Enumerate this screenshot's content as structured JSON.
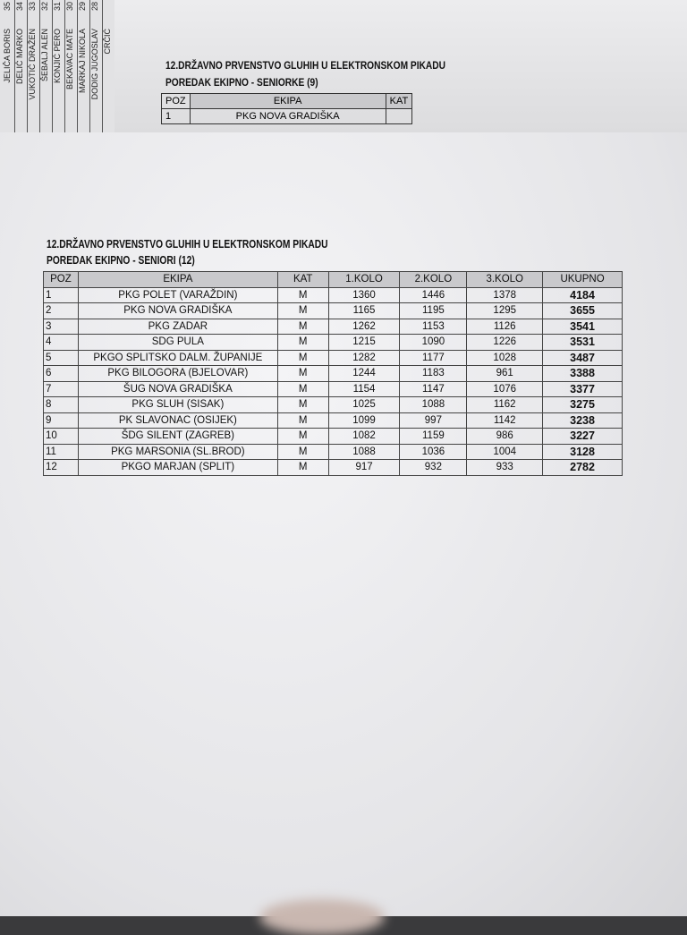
{
  "background_list": {
    "numbers": [
      "28",
      "29",
      "30",
      "31",
      "32",
      "33",
      "34",
      "35"
    ],
    "names": [
      "CRČIĆ",
      "DODIG JUGOSLAV",
      "MARKAJ NIKOLA",
      "BEKAVAC MATE",
      "KONJIĆ PERO",
      "ŠEBALJ ALEN",
      "VUKOTIĆ DRAŽEN",
      "DELIĆ MARKO",
      "JELIČA BORIS"
    ]
  },
  "background_sheet": {
    "title": "12.DRŽAVNO PRVENSTVO GLUHIH U ELEKTRONSKOM PIKADU",
    "subtitle": "POREDAK EKIPNO - SENIORKE (9)",
    "headers": [
      "POZ",
      "EKIPA",
      "KAT"
    ],
    "rows": [
      [
        "1",
        "PKG NOVA GRADIŠKA"
      ]
    ]
  },
  "main_sheet": {
    "title": "12.DRŽAVNO PRVENSTVO GLUHIH U ELEKTRONSKOM PIKADU",
    "subtitle": "POREDAK EKIPNO - SENIORI (12)",
    "headers": [
      "POZ",
      "EKIPA",
      "KAT",
      "1.KOLO",
      "2.KOLO",
      "3.KOLO",
      "UKUPNO"
    ],
    "rows": [
      [
        "1",
        "PKG POLET (VARAŽDIN)",
        "M",
        "1360",
        "1446",
        "1378",
        "4184"
      ],
      [
        "2",
        "PKG NOVA GRADIŠKA",
        "M",
        "1165",
        "1195",
        "1295",
        "3655"
      ],
      [
        "3",
        "PKG ZADAR",
        "M",
        "1262",
        "1153",
        "1126",
        "3541"
      ],
      [
        "4",
        "SDG PULA",
        "M",
        "1215",
        "1090",
        "1226",
        "3531"
      ],
      [
        "5",
        "PKGO SPLITSKO DALM. ŽUPANIJE",
        "M",
        "1282",
        "1177",
        "1028",
        "3487"
      ],
      [
        "6",
        "PKG BILOGORA (BJELOVAR)",
        "M",
        "1244",
        "1183",
        "961",
        "3388"
      ],
      [
        "7",
        "ŠUG NOVA GRADIŠKA",
        "M",
        "1154",
        "1147",
        "1076",
        "3377"
      ],
      [
        "8",
        "PKG SLUH (SISAK)",
        "M",
        "1025",
        "1088",
        "1162",
        "3275"
      ],
      [
        "9",
        "PK SLAVONAC (OSIJEK)",
        "M",
        "1099",
        "997",
        "1142",
        "3238"
      ],
      [
        "10",
        "ŠDG SILENT (ZAGREB)",
        "M",
        "1082",
        "1159",
        "986",
        "3227"
      ],
      [
        "11",
        "PKG MARSONIA (SL.BROD)",
        "M",
        "1088",
        "1036",
        "1004",
        "3128"
      ],
      [
        "12",
        "PKGO MARJAN (SPLIT)",
        "M",
        "917",
        "932",
        "933",
        "2782"
      ]
    ]
  }
}
